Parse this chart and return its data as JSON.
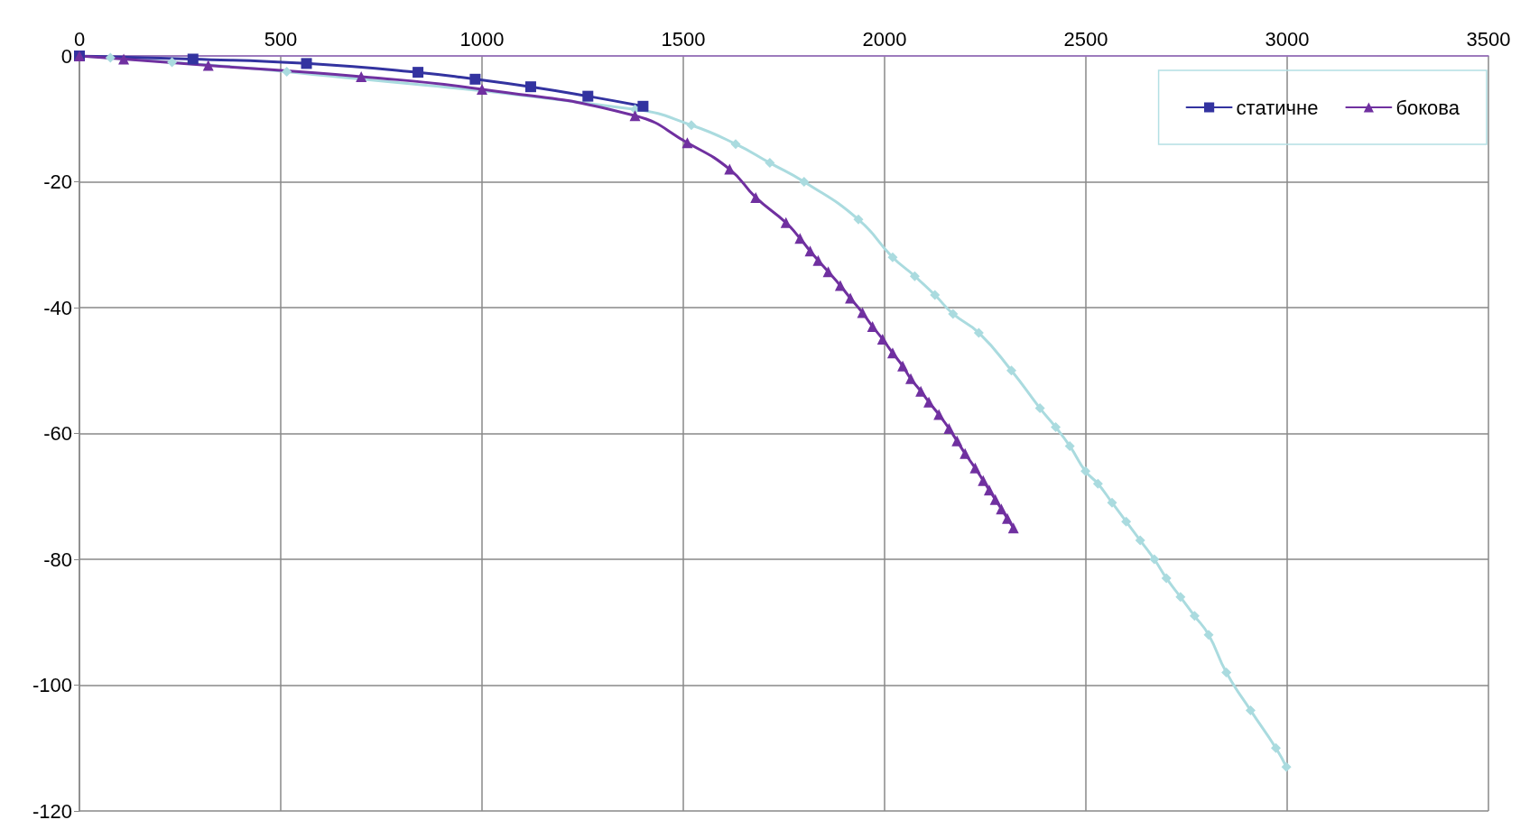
{
  "chart_data": {
    "type": "line",
    "xlim": [
      0,
      3500
    ],
    "xticks": [
      0,
      500,
      1000,
      1500,
      2000,
      2500,
      3000,
      3500
    ],
    "ylim": [
      -120,
      0
    ],
    "yticks": [
      -120,
      -100,
      -80,
      -60,
      -40,
      -20,
      0
    ],
    "grid": true,
    "legend": "top right",
    "series": [
      {
        "color": "#aadbdf",
        "marker": "diamond",
        "x": [
          0,
          77,
          230,
          515,
          1000,
          1380,
          1520,
          1630,
          1715,
          1800,
          1935,
          2020,
          2075,
          2125,
          2170,
          2234,
          2315,
          2386,
          2425,
          2460,
          2499,
          2530,
          2565,
          2600,
          2635,
          2670,
          2700,
          2735,
          2770,
          2805,
          2849,
          2909,
          2972,
          2998
        ],
        "values": [
          0,
          -0.3,
          -1,
          -2.5,
          null,
          -8.5,
          -11,
          -14,
          -17,
          -20,
          -26,
          -32,
          -35,
          -38,
          -41,
          -44,
          -50,
          -56,
          -59,
          -62,
          -66,
          -68,
          -71,
          -74,
          -77,
          -80,
          -83,
          -86,
          -89,
          -92,
          -98,
          -104,
          -110,
          -113
        ]
      },
      {
        "name": "статичне",
        "color": "#3333a0",
        "marker": "square",
        "x": [
          0,
          282,
          564,
          841,
          983,
          1121,
          1263,
          1400
        ],
        "values": [
          0,
          -0.5,
          -1.2,
          -2.6,
          -3.7,
          -4.9,
          -6.4,
          -8
        ]
      },
      {
        "name": "бокова",
        "color": "#7030a0",
        "marker": "triangle",
        "x": [
          0,
          110,
          320,
          700,
          1000,
          1380,
          1510,
          1615,
          1680,
          1755,
          1790,
          1815,
          1835,
          1860,
          1890,
          1915,
          1945,
          1970,
          1995,
          2020,
          2045,
          2065,
          2090,
          2110,
          2135,
          2160,
          2180,
          2200,
          2225,
          2245,
          2260,
          2275,
          2290,
          2305,
          2320
        ],
        "values": [
          0,
          -0.5,
          -1.5,
          -3.3,
          -5.3,
          -9.5,
          -13.8,
          -18,
          -22.5,
          -26.5,
          -29,
          -31,
          -32.5,
          -34.3,
          -36.5,
          -38.5,
          -40.8,
          -43,
          -45,
          -47.2,
          -49.3,
          -51.3,
          -53.3,
          -55,
          -57,
          -59.2,
          -61.2,
          -63.2,
          -65.5,
          -67.5,
          -69,
          -70.5,
          -72,
          -73.5,
          -75
        ]
      }
    ]
  }
}
